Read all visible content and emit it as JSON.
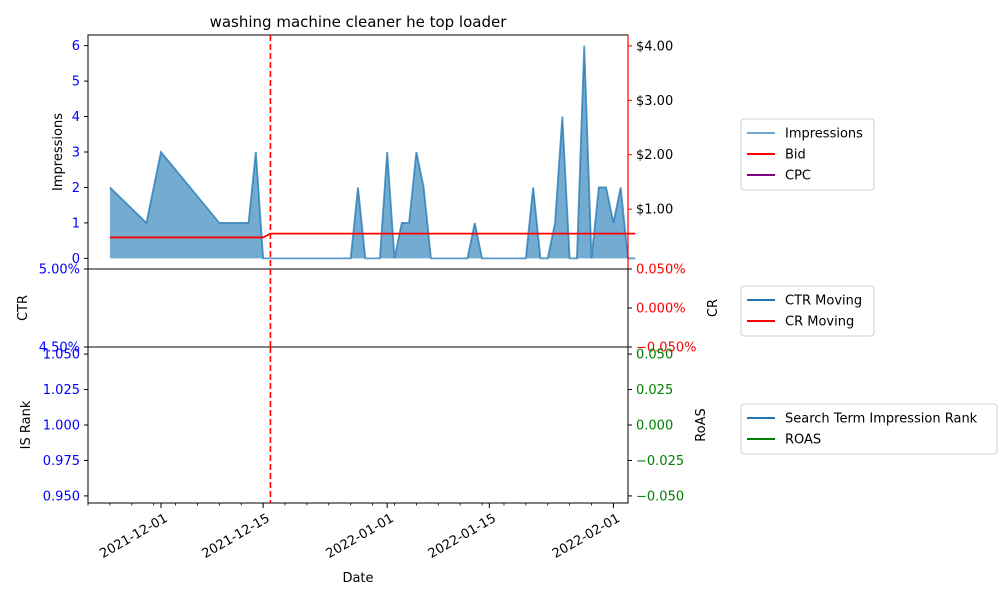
{
  "colors": {
    "impressions": "#1f77b4",
    "bid": "#ff0000",
    "cpc": "#800080",
    "ctr": "#1f77b4",
    "cr": "#ff0000",
    "is_rank": "#1f77b4",
    "roas": "#008000",
    "left_ticks": "#0000ff",
    "right_ticks_top": "#000000",
    "right_ticks_mid": "#ff0000",
    "right_ticks_bottom": "#008000",
    "marker_line": "#ff0000"
  },
  "chart_data": [
    {
      "type": "area",
      "title": "washing machine cleaner he top loader",
      "ylabel_left": "Impressions",
      "ylim_left": [
        -0.3,
        6.3
      ],
      "yticks_left": [
        0,
        1,
        2,
        3,
        4,
        5,
        6
      ],
      "ylim_right": [
        -0.1,
        4.2
      ],
      "yticks_right": [
        "$1.00",
        "$2.00",
        "$3.00",
        "$4.00"
      ],
      "yticks_right_values": [
        1,
        2,
        3,
        4
      ],
      "xlim": [
        "2021-11-21",
        "2022-02-03"
      ],
      "vline_date": "2021-12-16",
      "legend": [
        "Impressions",
        "Bid",
        "CPC"
      ],
      "legend_position": "outside-right",
      "series": [
        {
          "name": "Impressions",
          "kind": "area",
          "points": [
            [
              "2021-11-24",
              2
            ],
            [
              "2021-11-29",
              1
            ],
            [
              "2021-12-01",
              3
            ],
            [
              "2021-12-09",
              1
            ],
            [
              "2021-12-13",
              1
            ],
            [
              "2021-12-14",
              3
            ],
            [
              "2021-12-15",
              0
            ],
            [
              "2021-12-27",
              0
            ],
            [
              "2021-12-28",
              2
            ],
            [
              "2021-12-29",
              0
            ],
            [
              "2021-12-31",
              0
            ],
            [
              "2022-01-01",
              3
            ],
            [
              "2022-01-02",
              0
            ],
            [
              "2022-01-03",
              1
            ],
            [
              "2022-01-04",
              1
            ],
            [
              "2022-01-05",
              3
            ],
            [
              "2022-01-06",
              2
            ],
            [
              "2022-01-07",
              0
            ],
            [
              "2022-01-12",
              0
            ],
            [
              "2022-01-13",
              1
            ],
            [
              "2022-01-14",
              0
            ],
            [
              "2022-01-20",
              0
            ],
            [
              "2022-01-21",
              2
            ],
            [
              "2022-01-22",
              0
            ],
            [
              "2022-01-23",
              0
            ],
            [
              "2022-01-24",
              1
            ],
            [
              "2022-01-25",
              4
            ],
            [
              "2022-01-26",
              0
            ],
            [
              "2022-01-27",
              0
            ],
            [
              "2022-01-28",
              6
            ],
            [
              "2022-01-29",
              0
            ],
            [
              "2022-01-30",
              2
            ],
            [
              "2022-01-31",
              2
            ],
            [
              "2022-02-01",
              1
            ],
            [
              "2022-02-02",
              2
            ],
            [
              "2022-02-03",
              0
            ],
            [
              "2022-02-04",
              0
            ]
          ]
        },
        {
          "name": "Bid",
          "kind": "line",
          "axis": "right",
          "points": [
            [
              "2021-11-24",
              0.48
            ],
            [
              "2021-12-15",
              0.48
            ],
            [
              "2021-12-16",
              0.55
            ],
            [
              "2022-02-04",
              0.55
            ]
          ]
        },
        {
          "name": "CPC",
          "kind": "line",
          "axis": "right",
          "points": []
        }
      ]
    },
    {
      "type": "line",
      "ylabel_left": "CTR",
      "ylabel_right": "CR",
      "yticks_left": [
        "5.00%",
        "4.50%"
      ],
      "yticks_right": [
        "0.050%",
        "0.000%",
        "−0.050%"
      ],
      "yticks_right_values": [
        0.05,
        0,
        -0.05
      ],
      "ylim_right": [
        -0.05,
        0.05
      ],
      "legend": [
        "CTR Moving",
        "CR Moving"
      ],
      "legend_position": "outside-right",
      "series": [
        {
          "name": "CTR Moving",
          "values": []
        },
        {
          "name": "CR Moving",
          "values": []
        }
      ]
    },
    {
      "type": "line",
      "ylabel_left": "IS Rank",
      "ylabel_right": "RoAS",
      "xlabel": "Date",
      "yticks_left": [
        "1.050",
        "1.025",
        "1.000",
        "0.975",
        "0.950"
      ],
      "yticks_left_values": [
        1.05,
        1.025,
        1.0,
        0.975,
        0.95
      ],
      "ylim_left": [
        0.945,
        1.055
      ],
      "yticks_right": [
        "0.050",
        "0.025",
        "0.000",
        "−0.025",
        "−0.050"
      ],
      "yticks_right_values": [
        0.05,
        0.025,
        0,
        -0.025,
        -0.05
      ],
      "ylim_right": [
        -0.055,
        0.055
      ],
      "xticks": [
        "2021-12-01",
        "2021-12-15",
        "2022-01-01",
        "2022-01-15",
        "2022-02-01"
      ],
      "legend": [
        "Search Term Impression Rank",
        "ROAS"
      ],
      "legend_position": "outside-right",
      "series": [
        {
          "name": "Search Term Impression Rank",
          "values": []
        },
        {
          "name": "ROAS",
          "values": []
        }
      ]
    }
  ]
}
